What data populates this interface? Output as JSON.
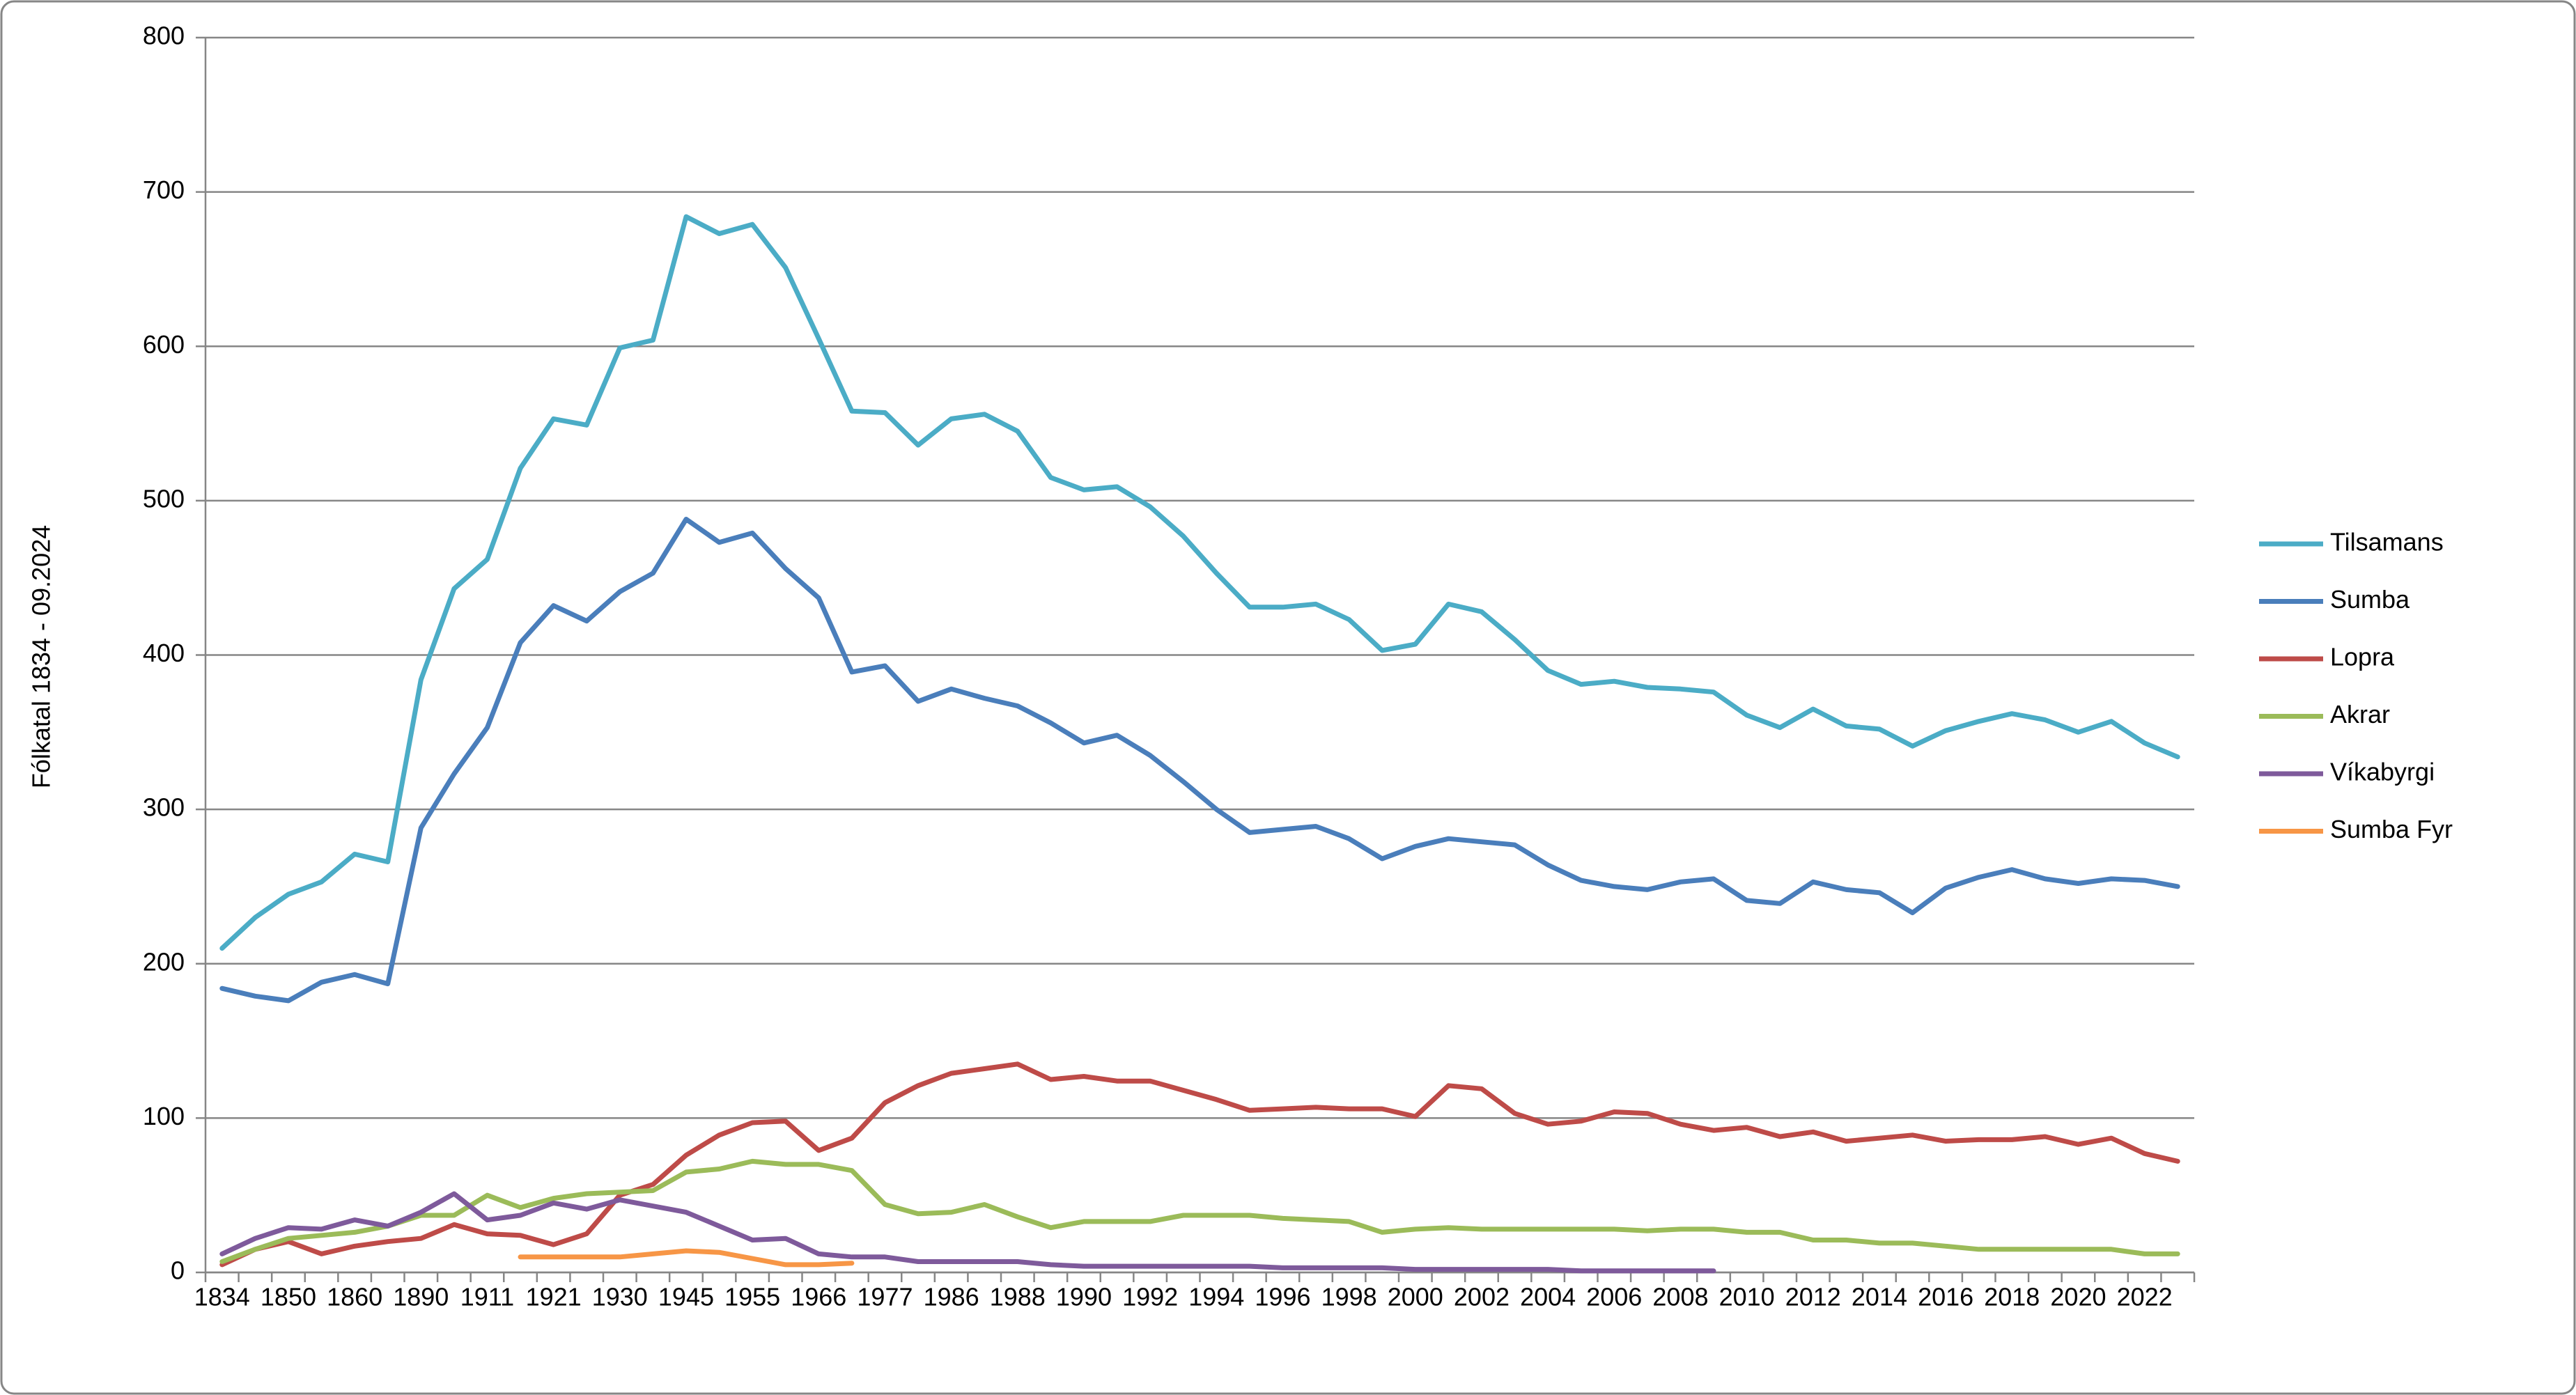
{
  "chart_data": {
    "type": "line",
    "y_label": "Fólkatal 1834 - 09.2024",
    "categories": [
      "1834",
      null,
      "1850",
      null,
      "1860",
      null,
      "1890",
      null,
      "1911",
      null,
      "1921",
      null,
      "1930",
      null,
      "1945",
      null,
      "1955",
      null,
      "1966",
      null,
      "1977",
      null,
      "1986",
      null,
      "1988",
      null,
      "1990",
      null,
      "1992",
      null,
      "1994",
      null,
      "1996",
      null,
      "1998",
      null,
      "2000",
      null,
      "2002",
      null,
      "2004",
      null,
      "2006",
      null,
      "2008",
      null,
      "2010",
      null,
      "2012",
      null,
      "2014",
      null,
      "2016",
      null,
      "2018",
      null,
      "2020",
      null,
      "2022",
      null
    ],
    "ylim": [
      0,
      800
    ],
    "yticks": [
      0,
      100,
      200,
      300,
      400,
      500,
      600,
      700,
      800
    ],
    "grid": true,
    "legend": "right",
    "series": [
      {
        "name": "Tilsamans",
        "color": "#4bacc6",
        "values": [
          210,
          230,
          245,
          253,
          271,
          266,
          384,
          443,
          462,
          521,
          553,
          549,
          599,
          604,
          684,
          673,
          679,
          651,
          605,
          558,
          557,
          536,
          553,
          556,
          545,
          515,
          507,
          509,
          496,
          477,
          453,
          431,
          431,
          433,
          423,
          403,
          407,
          433,
          428,
          410,
          390,
          381,
          383,
          379,
          378,
          376,
          361,
          353,
          365,
          354,
          352,
          341,
          351,
          357,
          362,
          358,
          350,
          357,
          343,
          334
        ]
      },
      {
        "name": "Sumba",
        "color": "#4a7ebb",
        "values": [
          184,
          179,
          176,
          188,
          193,
          187,
          288,
          323,
          353,
          408,
          432,
          422,
          441,
          453,
          488,
          473,
          479,
          456,
          437,
          389,
          393,
          370,
          378,
          372,
          367,
          356,
          343,
          348,
          335,
          318,
          300,
          285,
          287,
          289,
          281,
          268,
          276,
          281,
          279,
          277,
          264,
          254,
          250,
          248,
          253,
          255,
          241,
          239,
          253,
          248,
          246,
          233,
          249,
          256,
          261,
          255,
          252,
          255,
          254,
          250
        ]
      },
      {
        "name": "Lopra",
        "color": "#be4b48",
        "values": [
          5,
          15,
          20,
          12,
          17,
          20,
          22,
          31,
          25,
          24,
          18,
          25,
          50,
          57,
          76,
          89,
          97,
          98,
          79,
          87,
          110,
          121,
          129,
          132,
          135,
          125,
          127,
          124,
          124,
          118,
          112,
          105,
          106,
          107,
          106,
          106,
          101,
          121,
          119,
          103,
          96,
          98,
          104,
          103,
          96,
          92,
          94,
          88,
          91,
          85,
          87,
          89,
          85,
          86,
          86,
          88,
          83,
          87,
          77,
          72
        ]
      },
      {
        "name": "Akrar",
        "color": "#9bbb59",
        "values": [
          7,
          15,
          22,
          24,
          26,
          30,
          37,
          37,
          50,
          42,
          48,
          51,
          52,
          53,
          65,
          67,
          72,
          70,
          70,
          66,
          44,
          38,
          39,
          44,
          36,
          29,
          33,
          33,
          33,
          37,
          37,
          37,
          35,
          34,
          33,
          26,
          28,
          29,
          28,
          28,
          28,
          28,
          28,
          27,
          28,
          28,
          26,
          26,
          21,
          21,
          19,
          19,
          17,
          15,
          15,
          15,
          15,
          15,
          12,
          12
        ]
      },
      {
        "name": "Víkabyrgi",
        "color": "#7e5a9b",
        "values": [
          12,
          22,
          29,
          28,
          34,
          30,
          39,
          51,
          34,
          37,
          45,
          41,
          47,
          43,
          39,
          30,
          21,
          22,
          12,
          10,
          10,
          7,
          7,
          7,
          7,
          5,
          4,
          4,
          4,
          4,
          4,
          4,
          3,
          3,
          3,
          3,
          2,
          2,
          2,
          2,
          2,
          1,
          1,
          1,
          1,
          1,
          null,
          null,
          null,
          null,
          null,
          null,
          null,
          null,
          null,
          null,
          null,
          null,
          null,
          null
        ]
      },
      {
        "name": "Sumba Fyr",
        "color": "#f79646",
        "values": [
          null,
          null,
          null,
          null,
          null,
          null,
          null,
          null,
          null,
          10,
          10,
          10,
          10,
          12,
          14,
          13,
          9,
          5,
          5,
          6,
          null,
          null,
          null,
          null,
          null,
          null,
          null,
          null,
          null,
          null,
          null,
          null,
          null,
          null,
          null,
          null,
          null,
          null,
          null,
          null,
          null,
          null,
          null,
          null,
          null,
          null,
          null,
          null,
          null,
          null,
          null,
          null,
          null,
          null,
          null,
          null,
          null,
          null,
          null,
          null
        ]
      }
    ]
  }
}
